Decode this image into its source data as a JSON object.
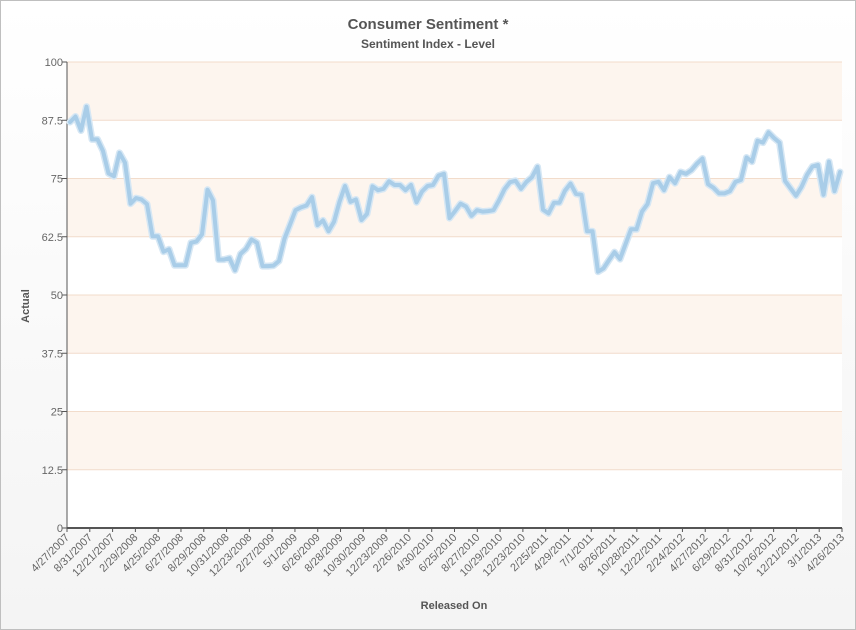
{
  "chart_data": {
    "type": "line",
    "title": "Consumer Sentiment *",
    "subtitle": "Sentiment Index - Level",
    "xlabel": "Released On",
    "ylabel": "Actual",
    "ylim": [
      0,
      100
    ],
    "yticks": [
      "0",
      "12.5",
      "25",
      "37.5",
      "50",
      "62.5",
      "75",
      "87.5",
      "100"
    ],
    "xticks": [
      "4/27/2007",
      "8/31/2007",
      "12/21/2007",
      "2/29/2008",
      "4/25/2008",
      "6/27/2008",
      "8/29/2008",
      "10/31/2008",
      "12/23/2008",
      "2/27/2009",
      "5/1/2009",
      "6/26/2009",
      "8/28/2009",
      "10/30/2009",
      "12/23/2009",
      "2/26/2010",
      "4/30/2010",
      "6/25/2010",
      "8/27/2010",
      "10/29/2010",
      "12/23/2010",
      "2/25/2011",
      "4/29/2011",
      "7/1/2011",
      "8/26/2011",
      "10/28/2011",
      "12/22/2011",
      "2/24/2012",
      "4/27/2012",
      "6/29/2012",
      "8/31/2012",
      "10/26/2012",
      "12/21/2012",
      "3/1/2013",
      "4/26/2013"
    ],
    "band_colors": [
      "#fdf5ee",
      "#ffffff"
    ],
    "line_color": "#a9cde8",
    "grid": true,
    "legend": "none",
    "series": [
      {
        "values": [
          87.1,
          88.3,
          85.3,
          90.4,
          83.4,
          83.4,
          80.9,
          76.1,
          75.5,
          80.5,
          78.4,
          69.6,
          70.8,
          70.5,
          69.5,
          62.6,
          62.6,
          59.3,
          59.8,
          56.4,
          56.4,
          56.4,
          61.2,
          61.5,
          63.0,
          72.6,
          70.3,
          57.6,
          57.6,
          57.9,
          55.3,
          58.8,
          59.9,
          61.9,
          61.2,
          56.2,
          56.2,
          56.3,
          57.3,
          62.1,
          65.1,
          68.2,
          68.8,
          69.2,
          71.0,
          65.0,
          66.0,
          63.7,
          65.7,
          70.0,
          73.4,
          70.0,
          70.5,
          66.1,
          67.4,
          73.3,
          72.5,
          72.8,
          74.4,
          73.6,
          73.6,
          72.5,
          73.6,
          69.9,
          72.2,
          73.4,
          73.6,
          75.6,
          76.0,
          66.5,
          68.0,
          69.6,
          69.0,
          67.0,
          68.2,
          67.9,
          68.0,
          68.2,
          70.3,
          72.7,
          74.2,
          74.5,
          72.8,
          74.3,
          75.3,
          77.5,
          68.3,
          67.5,
          69.8,
          69.8,
          72.4,
          73.9,
          71.7,
          71.5,
          63.7,
          63.7,
          55.0,
          55.7,
          57.5,
          59.2,
          57.7,
          60.9,
          64.1,
          64.1,
          67.9,
          69.5,
          74.0,
          74.3,
          72.5,
          75.3,
          74.0,
          76.4,
          76.0,
          76.8,
          78.2,
          79.3,
          73.8,
          73.0,
          71.8,
          71.8,
          72.3,
          74.3,
          74.7,
          79.5,
          78.6,
          83.1,
          82.7,
          84.9,
          83.7,
          82.7,
          74.5,
          72.9,
          71.3,
          73.2,
          75.8,
          77.6,
          77.9,
          71.5,
          78.6,
          72.3,
          76.4
        ]
      }
    ]
  }
}
